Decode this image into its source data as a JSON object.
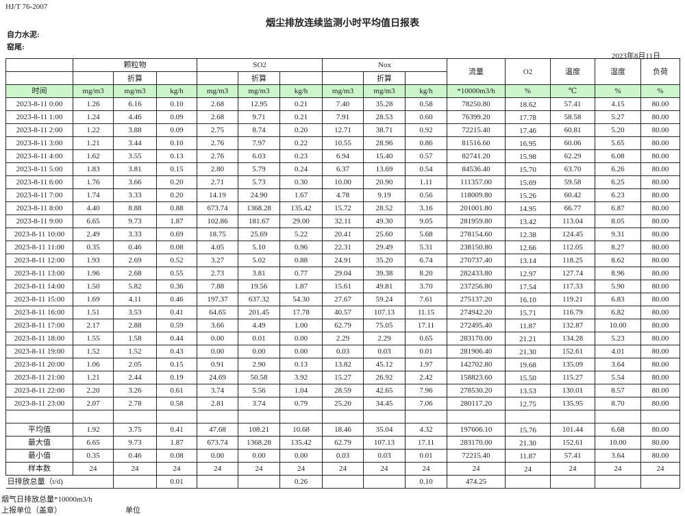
{
  "document": {
    "standard": "HJ/T  76-2007",
    "title": "烟尘排放连续监测小时平均值日报表",
    "company": "自力水泥:",
    "kiln": "窑尾:",
    "report_date": "2023年8月11日"
  },
  "header": {
    "groups": [
      "颗粒物",
      "SO2",
      "Nox"
    ],
    "converted": "折算",
    "flow": "流量",
    "o2": "O2",
    "temp": "温度",
    "humidity": "湿度",
    "load": "负荷",
    "units": [
      "时间",
      "mg/m3",
      "mg/m3",
      "kg/h",
      "mg/m3",
      "mg/m3",
      "kg/h",
      "mg/m3",
      "mg/m3",
      "kg/h",
      "*10000m3/h",
      "%",
      "℃",
      "%",
      "%"
    ]
  },
  "rows": [
    [
      "2023-8-11 0:00",
      "1.26",
      "6.16",
      "0.10",
      "2.68",
      "12.95",
      "0.21",
      "7.40",
      "35.28",
      "0.58",
      "78250.80",
      "18.62",
      "57.41",
      "4.15",
      "80.00"
    ],
    [
      "2023-8-11 1:00",
      "1.24",
      "4.46",
      "0.09",
      "2.68",
      "9.71",
      "0.21",
      "7.91",
      "28.53",
      "0.60",
      "76399.20",
      "17.78",
      "58.58",
      "5.27",
      "80.00"
    ],
    [
      "2023-8-11 2:00",
      "1.22",
      "3.88",
      "0.09",
      "2.75",
      "8.74",
      "0.20",
      "12.71",
      "38.71",
      "0.92",
      "72215.40",
      "17.46",
      "60.81",
      "5.20",
      "80.00"
    ],
    [
      "2023-8-11 3:00",
      "1.21",
      "3.44",
      "0.10",
      "2.76",
      "7.97",
      "0.22",
      "10.55",
      "28.96",
      "0.86",
      "81516.60",
      "16.95",
      "60.06",
      "5.65",
      "80.00"
    ],
    [
      "2023-8-11 4:00",
      "1.62",
      "3.55",
      "0.13",
      "2.76",
      "6.03",
      "0.23",
      "6.94",
      "15.40",
      "0.57",
      "82741.20",
      "15.98",
      "62.29",
      "6.08",
      "80.00"
    ],
    [
      "2023-8-11 5:00",
      "1.83",
      "3.81",
      "0.15",
      "2.80",
      "5.79",
      "0.24",
      "6.37",
      "13.69",
      "0.54",
      "84536.40",
      "15.70",
      "63.70",
      "6.26",
      "80.00"
    ],
    [
      "2023-8-11 6:00",
      "1.76",
      "3.66",
      "0.20",
      "2.71",
      "5.73",
      "0.30",
      "10.00",
      "20.90",
      "1.11",
      "111357.00",
      "15.69",
      "59.58",
      "6.25",
      "80.00"
    ],
    [
      "2023-8-11 7:00",
      "1.74",
      "3.33",
      "0.20",
      "14.19",
      "24.90",
      "1.67",
      "4.78",
      "9.19",
      "0.56",
      "118009.80",
      "15.26",
      "60.42",
      "6.23",
      "80.00"
    ],
    [
      "2023-8-11 8:00",
      "4.40",
      "8.88",
      "0.88",
      "673.74",
      "1368.28",
      "135.42",
      "15.72",
      "28.52",
      "3.16",
      "201001.80",
      "14.95",
      "66.77",
      "6.87",
      "80.00"
    ],
    [
      "2023-8-11 9:00",
      "6.65",
      "9.73",
      "1.87",
      "102.86",
      "181.67",
      "29.00",
      "32.11",
      "49.30",
      "9.05",
      "281959.80",
      "13.42",
      "113.04",
      "8.05",
      "80.00"
    ],
    [
      "2023-8-11 10:00",
      "2.49",
      "3.33",
      "0.69",
      "18.75",
      "25.69",
      "5.22",
      "20.41",
      "25.60",
      "5.68",
      "278154.60",
      "12.38",
      "124.45",
      "9.31",
      "80.00"
    ],
    [
      "2023-8-11 11:00",
      "0.35",
      "0.46",
      "0.08",
      "4.05",
      "5.10",
      "0.96",
      "22.31",
      "29.49",
      "5.31",
      "238150.80",
      "12.66",
      "112.05",
      "8.27",
      "80.00"
    ],
    [
      "2023-8-11 12:00",
      "1.93",
      "2.69",
      "0.52",
      "3.27",
      "5.02",
      "0.88",
      "24.91",
      "35.20",
      "6.74",
      "270737.40",
      "13.14",
      "118.25",
      "8.62",
      "80.00"
    ],
    [
      "2023-8-11 13:00",
      "1.96",
      "2.68",
      "0.55",
      "2.73",
      "3.81",
      "0.77",
      "29.04",
      "39.38",
      "8.20",
      "282433.80",
      "12.97",
      "127.74",
      "8.96",
      "80.00"
    ],
    [
      "2023-8-11 14:00",
      "1.50",
      "5.82",
      "0.36",
      "7.88",
      "19.56",
      "1.87",
      "15.61",
      "49.81",
      "3.70",
      "237256.80",
      "17.54",
      "117.33",
      "5.90",
      "80.00"
    ],
    [
      "2023-8-11 15:00",
      "1.69",
      "4.11",
      "0.46",
      "197.37",
      "637.32",
      "54.30",
      "27.67",
      "59.24",
      "7.61",
      "275137.20",
      "16.10",
      "119.21",
      "6.83",
      "80.00"
    ],
    [
      "2023-8-11 16:00",
      "1.51",
      "3.53",
      "0.41",
      "64.65",
      "201.45",
      "17.78",
      "40.57",
      "107.13",
      "11.15",
      "274942.20",
      "15.71",
      "116.79",
      "6.82",
      "80.00"
    ],
    [
      "2023-8-11 17:00",
      "2.17",
      "2.88",
      "0.59",
      "3.66",
      "4.49",
      "1.00",
      "62.79",
      "75.05",
      "17.11",
      "272495.40",
      "11.87",
      "132.87",
      "10.00",
      "80.00"
    ],
    [
      "2023-8-11 18:00",
      "1.55",
      "1.58",
      "0.44",
      "0.00",
      "0.01",
      "0.00",
      "2.29",
      "2.29",
      "0.65",
      "283170.00",
      "21.21",
      "134.28",
      "5.23",
      "80.00"
    ],
    [
      "2023-8-11 19:00",
      "1.52",
      "1.52",
      "0.43",
      "0.00",
      "0.00",
      "0.00",
      "0.03",
      "0.03",
      "0.01",
      "281906.40",
      "21.30",
      "152.61",
      "4.01",
      "80.00"
    ],
    [
      "2023-8-11 20:00",
      "1.06",
      "2.05",
      "0.15",
      "0.91",
      "2.90",
      "0.13",
      "13.82",
      "45.12",
      "1.97",
      "142702.80",
      "19.68",
      "135.09",
      "3.64",
      "80.00"
    ],
    [
      "2023-8-11 21:00",
      "1.21",
      "2.44",
      "0.19",
      "24.69",
      "50.58",
      "3.92",
      "15.27",
      "26.92",
      "2.42",
      "158823.60",
      "15.50",
      "115.27",
      "5.54",
      "80.00"
    ],
    [
      "2023-8-11 22:00",
      "2.20",
      "3.26",
      "0.61",
      "3.74",
      "5.56",
      "1.04",
      "28.59",
      "42.65",
      "7.96",
      "278530.20",
      "13.53",
      "130.01",
      "8.57",
      "80.00"
    ],
    [
      "2023-8-11 23:00",
      "2.07",
      "2.78",
      "0.58",
      "2.81",
      "3.74",
      "0.79",
      "25.20",
      "34.45",
      "7.06",
      "280117.20",
      "12.75",
      "135.95",
      "8.70",
      "80.00"
    ]
  ],
  "summary": [
    [
      "平均值",
      "1.92",
      "3.75",
      "0.41",
      "47.68",
      "108.21",
      "10.68",
      "18.46",
      "35.04",
      "4.32",
      "197606.10",
      "15.76",
      "101.44",
      "6.68",
      "80.00"
    ],
    [
      "最大值",
      "6.65",
      "9.73",
      "1.87",
      "673.74",
      "1368.28",
      "135.42",
      "62.79",
      "107.13",
      "17.11",
      "283170.00",
      "21.30",
      "152.61",
      "10.00",
      "80.00"
    ],
    [
      "最小值",
      "0.35",
      "0.46",
      "0.08",
      "0.00",
      "0.00",
      "0.00",
      "0.03",
      "0.03",
      "0.01",
      "72215.40",
      "11.87",
      "57.41",
      "3.64",
      "80.00"
    ],
    [
      "样本数",
      "24",
      "24",
      "24",
      "24",
      "24",
      "24",
      "24",
      "24",
      "24",
      "24",
      "24",
      "24",
      "24",
      "24"
    ]
  ],
  "daily_total": {
    "label": "日排放总量（t/d)",
    "values": [
      "",
      "0.01",
      "",
      "",
      "0.26",
      "",
      "",
      "0.10",
      "474.25",
      "",
      "",
      "",
      ""
    ]
  },
  "footer": {
    "flue_total": "烟气日排放总量*10000m3/h",
    "reporter": "上报单位（盖章）",
    "unit": "单位"
  },
  "colors": {
    "header_green": "#ccf5cc",
    "border": "#222222"
  }
}
